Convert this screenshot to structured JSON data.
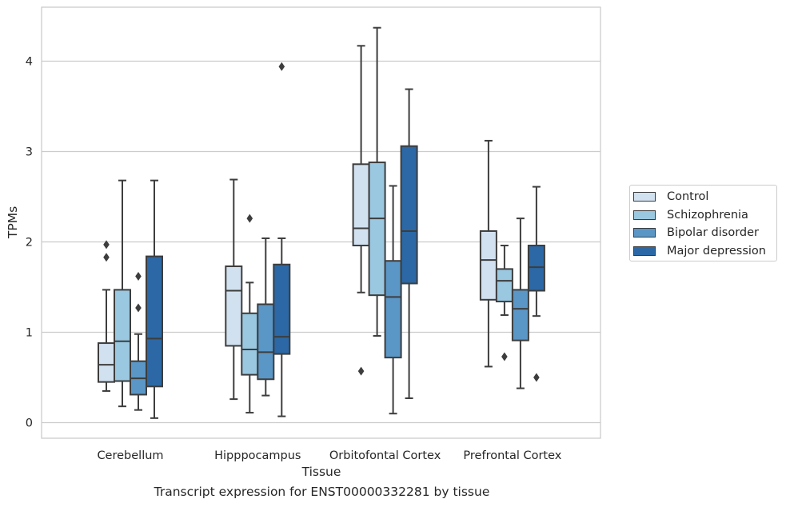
{
  "caption": "Transcript expression for ENST00000332281 by tissue",
  "chart_data": {
    "type": "box",
    "xlabel": "Tissue",
    "ylabel": "TPMs",
    "categories": [
      "Cerebellum",
      "Hipppocampus",
      "Orbitofontal Cortex",
      "Prefrontal Cortex"
    ],
    "ylim": [
      -0.17,
      4.6
    ],
    "yticks": [
      0,
      1,
      2,
      3,
      4
    ],
    "grid": true,
    "legend_position": "right",
    "series": [
      {
        "name": "Control",
        "color": "#d2e1f0",
        "boxes": [
          {
            "whislo": 0.35,
            "q1": 0.45,
            "med": 0.64,
            "q3": 0.88,
            "whishi": 1.47,
            "fliers": [
              1.83,
              1.97
            ]
          },
          {
            "whislo": 0.26,
            "q1": 0.85,
            "med": 1.46,
            "q3": 1.73,
            "whishi": 2.69,
            "fliers": []
          },
          {
            "whislo": 1.44,
            "q1": 1.96,
            "med": 2.15,
            "q3": 2.86,
            "whishi": 4.17,
            "fliers": [
              0.57
            ]
          },
          {
            "whislo": 0.62,
            "q1": 1.36,
            "med": 1.8,
            "q3": 2.12,
            "whishi": 3.12,
            "fliers": []
          }
        ]
      },
      {
        "name": "Schizophrenia",
        "color": "#9ac8e0",
        "boxes": [
          {
            "whislo": 0.18,
            "q1": 0.46,
            "med": 0.9,
            "q3": 1.47,
            "whishi": 2.68,
            "fliers": []
          },
          {
            "whislo": 0.11,
            "q1": 0.53,
            "med": 0.81,
            "q3": 1.21,
            "whishi": 1.55,
            "fliers": [
              2.26
            ]
          },
          {
            "whislo": 0.96,
            "q1": 1.41,
            "med": 2.26,
            "q3": 2.88,
            "whishi": 4.37,
            "fliers": []
          },
          {
            "whislo": 1.19,
            "q1": 1.34,
            "med": 1.57,
            "q3": 1.7,
            "whishi": 1.96,
            "fliers": [
              0.73
            ]
          }
        ]
      },
      {
        "name": "Bipolar disorder",
        "color": "#5a96c6",
        "boxes": [
          {
            "whislo": 0.14,
            "q1": 0.31,
            "med": 0.49,
            "q3": 0.68,
            "whishi": 0.98,
            "fliers": [
              1.27,
              1.62
            ]
          },
          {
            "whislo": 0.3,
            "q1": 0.48,
            "med": 0.78,
            "q3": 1.31,
            "whishi": 2.04,
            "fliers": []
          },
          {
            "whislo": 0.1,
            "q1": 0.72,
            "med": 1.39,
            "q3": 1.79,
            "whishi": 2.62,
            "fliers": []
          },
          {
            "whislo": 0.38,
            "q1": 0.91,
            "med": 1.26,
            "q3": 1.47,
            "whishi": 2.26,
            "fliers": []
          }
        ]
      },
      {
        "name": "Major depression",
        "color": "#2b68a5",
        "boxes": [
          {
            "whislo": 0.05,
            "q1": 0.4,
            "med": 0.93,
            "q3": 1.84,
            "whishi": 2.68,
            "fliers": []
          },
          {
            "whislo": 0.07,
            "q1": 0.76,
            "med": 0.95,
            "q3": 1.75,
            "whishi": 2.04,
            "fliers": [
              3.94
            ]
          },
          {
            "whislo": 0.27,
            "q1": 1.54,
            "med": 2.12,
            "q3": 3.06,
            "whishi": 3.69,
            "fliers": []
          },
          {
            "whislo": 1.18,
            "q1": 1.46,
            "med": 1.72,
            "q3": 1.96,
            "whishi": 2.61,
            "fliers": [
              0.5
            ]
          }
        ]
      }
    ]
  }
}
